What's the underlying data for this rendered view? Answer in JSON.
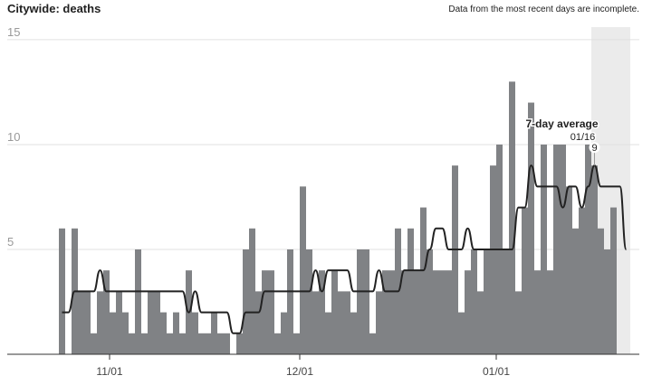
{
  "chart_data": {
    "type": "bar",
    "title": "Citywide: deaths",
    "subtitle": "Data from the most recent days are incomplete.",
    "categories": [
      null,
      null,
      null,
      null,
      null,
      null,
      null,
      null,
      "11/01",
      null,
      null,
      null,
      null,
      null,
      null,
      null,
      null,
      null,
      null,
      null,
      null,
      null,
      null,
      null,
      null,
      null,
      null,
      null,
      null,
      null,
      null,
      null,
      null,
      null,
      null,
      null,
      null,
      null,
      "12/01",
      null,
      null,
      null,
      null,
      null,
      null,
      null,
      null,
      null,
      null,
      null,
      null,
      null,
      null,
      null,
      null,
      null,
      null,
      null,
      null,
      null,
      null,
      null,
      null,
      null,
      null,
      null,
      null,
      null,
      null,
      "01/01",
      null,
      null,
      null,
      null,
      null,
      null,
      null,
      null,
      null,
      null,
      null,
      null,
      null,
      null,
      null,
      null,
      null,
      null,
      null,
      null
    ],
    "series": [
      {
        "name": "deaths",
        "color": "#808285",
        "values": [
          6,
          0,
          6,
          3,
          3,
          1,
          3,
          4,
          2,
          3,
          2,
          1,
          5,
          1,
          3,
          3,
          2,
          1,
          2,
          1,
          4,
          2,
          1,
          1,
          2,
          1,
          1,
          0,
          1,
          5,
          6,
          3,
          4,
          4,
          1,
          2,
          5,
          1,
          8,
          5,
          3,
          4,
          2,
          4,
          3,
          3,
          2,
          5,
          5,
          1,
          3,
          4,
          4,
          6,
          4,
          6,
          4,
          7,
          5,
          4,
          4,
          4,
          9,
          2,
          4,
          5,
          3,
          5,
          9,
          10,
          5,
          13,
          3,
          7,
          12,
          4,
          10,
          4,
          10,
          10,
          8,
          6,
          7,
          10,
          9,
          6,
          5,
          7,
          null,
          null
        ]
      },
      {
        "name": "7-day average",
        "color": "#222222",
        "type": "line",
        "values": [
          2,
          2,
          3,
          3,
          3,
          3,
          4,
          3,
          3,
          3,
          3,
          3,
          3,
          3,
          3,
          3,
          3,
          3,
          3,
          3,
          2,
          3,
          2,
          2,
          2,
          2,
          2,
          1,
          1,
          2,
          2,
          2,
          3,
          3,
          3,
          3,
          3,
          3,
          3,
          3,
          4,
          3,
          4,
          4,
          4,
          4,
          3,
          3,
          3,
          3,
          4,
          3,
          3,
          3,
          4,
          4,
          4,
          4,
          5,
          6,
          6,
          5,
          5,
          5,
          6,
          5,
          5,
          5,
          5,
          5,
          5,
          5,
          7,
          7,
          9,
          8,
          8,
          8,
          8,
          7,
          8,
          8,
          7,
          8,
          9,
          8,
          8,
          8,
          8,
          5
        ]
      }
    ],
    "annotation": {
      "date": "01/16",
      "value": 9,
      "index": 84
    },
    "shade_from_index": 84,
    "ylim": [
      0,
      15.6
    ],
    "yticks": [
      5,
      10,
      15
    ],
    "grid": true
  }
}
